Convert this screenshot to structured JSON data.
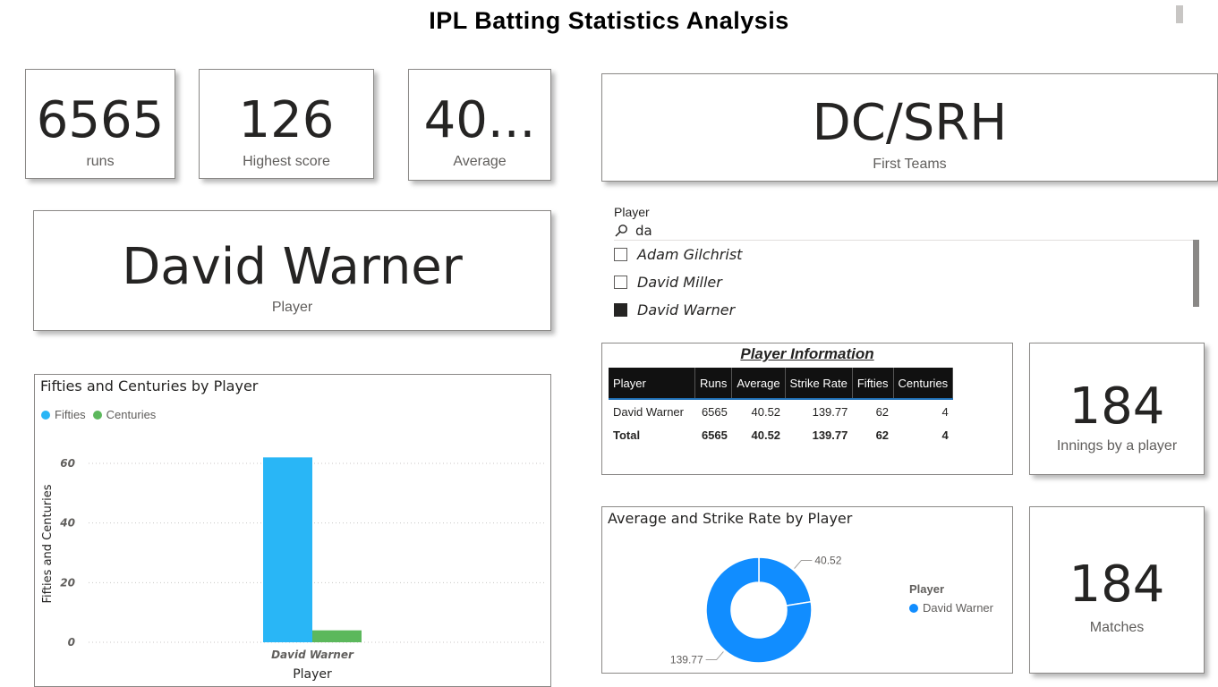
{
  "page": {
    "title": "IPL Batting Statistics Analysis"
  },
  "kpis": {
    "runs": {
      "value": "6565",
      "label": "runs"
    },
    "highest": {
      "value": "126",
      "label": "Highest score"
    },
    "average": {
      "value": "40...",
      "label": "Average"
    },
    "first_teams": {
      "value": "DC/SRH",
      "label": "First Teams"
    },
    "player": {
      "value": "David Warner",
      "label": "Player"
    },
    "innings": {
      "value": "184",
      "label": "Innings by a player"
    },
    "matches": {
      "value": "184",
      "label": "Matches"
    }
  },
  "slicer": {
    "title": "Player",
    "search_value": "da",
    "search_icon": "search-icon",
    "items": [
      {
        "label": "Adam Gilchrist",
        "checked": false
      },
      {
        "label": "David Miller",
        "checked": false
      },
      {
        "label": "David Warner",
        "checked": true
      }
    ]
  },
  "player_table": {
    "title": "Player Information",
    "headers": [
      "Player",
      "Runs",
      "Average",
      "Strike Rate",
      "Fifties",
      "Centuries"
    ],
    "row": [
      "David Warner",
      "6565",
      "40.52",
      "139.77",
      "62",
      "4"
    ],
    "total": [
      "Total",
      "6565",
      "40.52",
      "139.77",
      "62",
      "4"
    ]
  },
  "colors": {
    "fifties": "#29b6f6",
    "centuries": "#5cb85c",
    "donut": "#118dff"
  },
  "chart_data": [
    {
      "type": "bar",
      "title": "Fifties and Centuries by Player",
      "categories": [
        "David Warner"
      ],
      "series": [
        {
          "name": "Fifties",
          "values": [
            62
          ]
        },
        {
          "name": "Centuries",
          "values": [
            4
          ]
        }
      ],
      "xlabel": "Player",
      "ylabel": "Fifties and Centuries",
      "yticks": [
        "0",
        "20",
        "40",
        "60"
      ],
      "ylim": [
        0,
        66
      ],
      "grid": true,
      "legend": "top-left"
    },
    {
      "type": "pie",
      "title": "Average and Strike Rate by Player",
      "slices": [
        {
          "label": "40.52",
          "value": 40.52
        },
        {
          "label": "139.77",
          "value": 139.77
        }
      ],
      "legend_title": "Player",
      "legend_entries": [
        "David Warner"
      ],
      "legend": "right"
    }
  ]
}
